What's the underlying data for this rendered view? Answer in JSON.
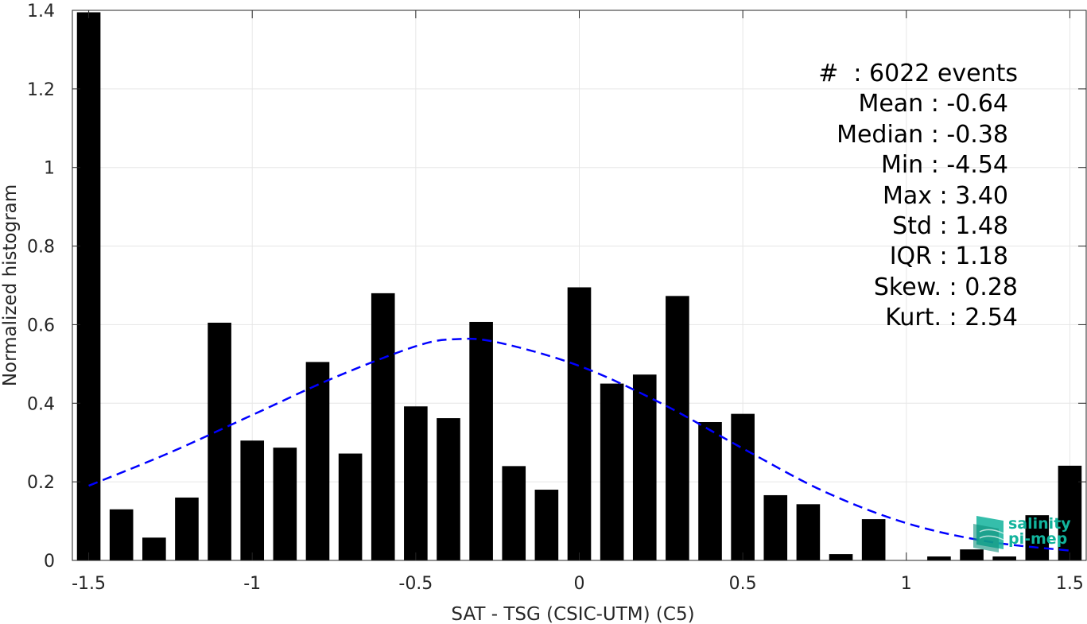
{
  "chart_data": {
    "type": "bar",
    "xlabel": "SAT - TSG (CSIC-UTM) (C5)",
    "ylabel": "Normalized histogram",
    "xlim": [
      -1.55,
      1.55
    ],
    "ylim": [
      0,
      1.4
    ],
    "xticks": [
      -1.5,
      -1,
      -0.5,
      0,
      0.5,
      1,
      1.5
    ],
    "xtick_labels": [
      "-1.5",
      "-1",
      "-0.5",
      "0",
      "0.5",
      "1",
      "1.5"
    ],
    "yticks": [
      0,
      0.2,
      0.4,
      0.6,
      0.8,
      1,
      1.2,
      1.4
    ],
    "ytick_labels": [
      "0",
      "0.2",
      "0.4",
      "0.6",
      "0.8",
      "1",
      "1.2",
      "1.4"
    ],
    "bin_width": 0.1,
    "bar_color": "#000000",
    "x": [
      -1.5,
      -1.4,
      -1.3,
      -1.2,
      -1.1,
      -1.0,
      -0.9,
      -0.8,
      -0.7,
      -0.6,
      -0.5,
      -0.4,
      -0.3,
      -0.2,
      -0.1,
      0.0,
      0.1,
      0.2,
      0.3,
      0.4,
      0.5,
      0.6,
      0.7,
      0.8,
      0.9,
      1.0,
      1.1,
      1.2,
      1.3,
      1.4,
      1.5
    ],
    "values": [
      1.395,
      0.13,
      0.058,
      0.16,
      0.605,
      0.305,
      0.287,
      0.505,
      0.272,
      0.68,
      0.392,
      0.362,
      0.607,
      0.24,
      0.18,
      0.695,
      0.45,
      0.473,
      0.673,
      0.352,
      0.373,
      0.166,
      0.143,
      0.016,
      0.105,
      0.0,
      0.01,
      0.028,
      0.01,
      0.115,
      0.241
    ],
    "fit_curve": {
      "style": "dashed",
      "color": "#0000ff",
      "x": [
        -1.5,
        -1.25,
        -1.0,
        -0.75,
        -0.5,
        -0.38,
        -0.25,
        0.0,
        0.25,
        0.5,
        0.75,
        1.0,
        1.25,
        1.5
      ],
      "y": [
        0.19,
        0.275,
        0.37,
        0.465,
        0.545,
        0.563,
        0.555,
        0.495,
        0.4,
        0.285,
        0.175,
        0.095,
        0.048,
        0.025
      ]
    },
    "grid": true
  },
  "stats": {
    "count": "#  : 6022 events",
    "mean": "Mean : -0.64",
    "median": "Median : -0.38",
    "min": "Min : -4.54",
    "max": "Max : 3.40",
    "std": "Std : 1.48",
    "iqr": "IQR : 1.18",
    "skew": "Skew. : 0.28",
    "kurt": "Kurt. : 2.54"
  },
  "logo": {
    "line1": "salinity",
    "line2": "pi-mep",
    "color": "#12b39c"
  }
}
